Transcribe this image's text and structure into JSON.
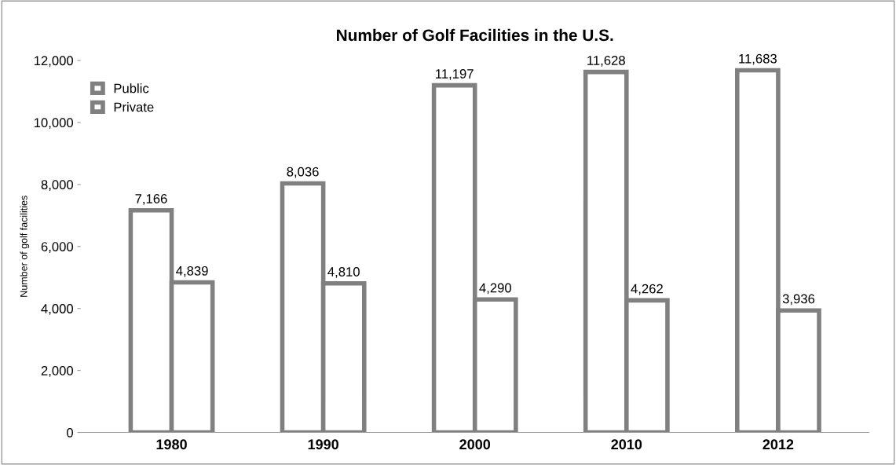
{
  "chart_data": {
    "type": "bar",
    "title": "Number of Golf Facilities in the U.S.",
    "ylabel": "Number of golf facilities",
    "categories": [
      "1980",
      "1990",
      "2000",
      "2010",
      "2012"
    ],
    "series": [
      {
        "name": "Public",
        "color": "#808080",
        "values": [
          7166,
          8036,
          11197,
          11628,
          11683
        ],
        "value_labels": [
          "7,166",
          "8,036",
          "11,197",
          "11,628",
          "11,683"
        ]
      },
      {
        "name": "Private",
        "color": "#808080",
        "values": [
          4839,
          4810,
          4290,
          4262,
          3936
        ],
        "value_labels": [
          "4,839",
          "4,810",
          "4,290",
          "4,262",
          "3,936"
        ]
      }
    ],
    "ylim": [
      0,
      12000
    ],
    "yticks": [
      {
        "value": 0,
        "label": "0"
      },
      {
        "value": 2000,
        "label": "2,000"
      },
      {
        "value": 4000,
        "label": "4,000"
      },
      {
        "value": 6000,
        "label": "6,000"
      },
      {
        "value": 8000,
        "label": "8,000"
      },
      {
        "value": 10000,
        "label": "10,000"
      },
      {
        "value": 12000,
        "label": "12,000"
      }
    ],
    "legend": "top left",
    "grid": false
  }
}
